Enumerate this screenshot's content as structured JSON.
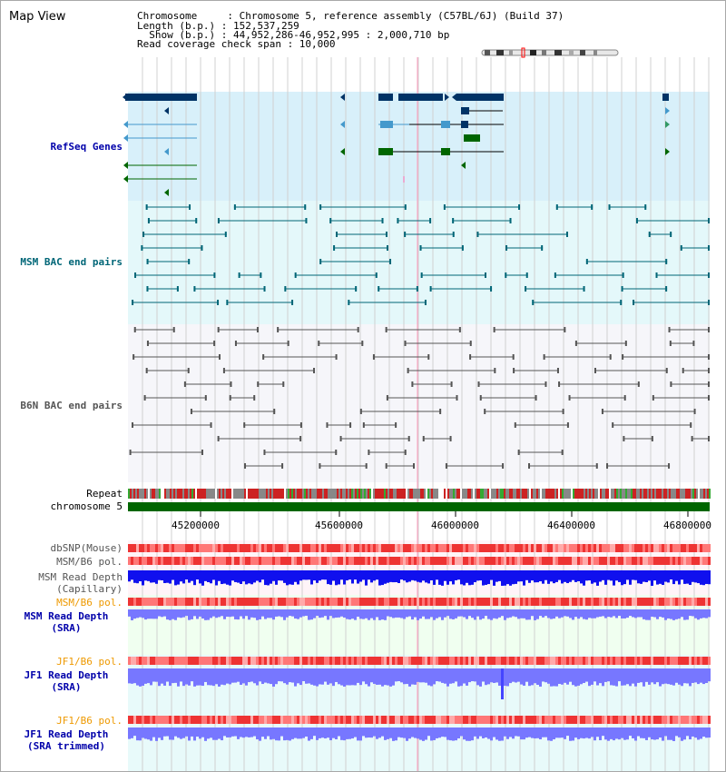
{
  "header": {
    "title": "Map View",
    "info_lines": [
      "Chromosome     : Chromosome 5, reference assembly (C57BL/6J) (Build 37)",
      "Length (b.p.) : 152,537,259",
      "  Show (b.p.) : 44,952,286-46,952,995 : 2,000,710 bp",
      "Read coverage check span : 10,000"
    ]
  },
  "tracks": {
    "refseq_genes": {
      "label": "RefSeq Genes",
      "color": "#0000aa"
    },
    "msm_bac": {
      "label": "MSM BAC end pairs",
      "color": "#006677"
    },
    "b6n_bac": {
      "label": "B6N BAC end pairs",
      "color": "#555555"
    },
    "repeat": {
      "label": "Repeat"
    },
    "chromosome": {
      "label": "chromosome 5",
      "color": "#006600"
    },
    "dbsnp": {
      "label": "dbSNP(Mouse)"
    },
    "msm_b6_pol": {
      "label": "MSM/B6 pol."
    },
    "msm_read_depth_cap": {
      "label_line1": "MSM Read Depth",
      "label_line2": "(Capillary)"
    },
    "msm_b6_pol2": {
      "label": "MSM/B6 pol.",
      "color": "#ee9900"
    },
    "msm_read_depth_sra": {
      "label_line1": "MSM Read Depth",
      "label_line2": "(SRA)",
      "color": "#0000aa"
    },
    "jf1_b6_pol": {
      "label": "JF1/B6 pol.",
      "color": "#ee9900"
    },
    "jf1_read_depth_sra": {
      "label_line1": "JF1 Read Depth",
      "label_line2": "(SRA)",
      "color": "#0000aa"
    },
    "jf1_b6_pol2": {
      "label": "JF1/B6 pol.",
      "color": "#ee9900"
    },
    "jf1_read_depth_trim": {
      "label_line1": "JF1 Read Depth",
      "label_line2": "(SRA trimmed)",
      "color": "#0000aa"
    }
  },
  "axis": {
    "ticks": [
      "45200000",
      "45600000",
      "46000000",
      "46400000",
      "46800000"
    ]
  },
  "colors": {
    "gene_dark": "#003366",
    "gene_light": "#4499cc",
    "gene_green": "#006600",
    "msm_line": "#006677",
    "b6n_line": "#555555",
    "depth_blue": "#1010ee",
    "depth_light": "#7777ff",
    "pol_red": "#ee3333",
    "pol_light": "#ffaaaa"
  }
}
